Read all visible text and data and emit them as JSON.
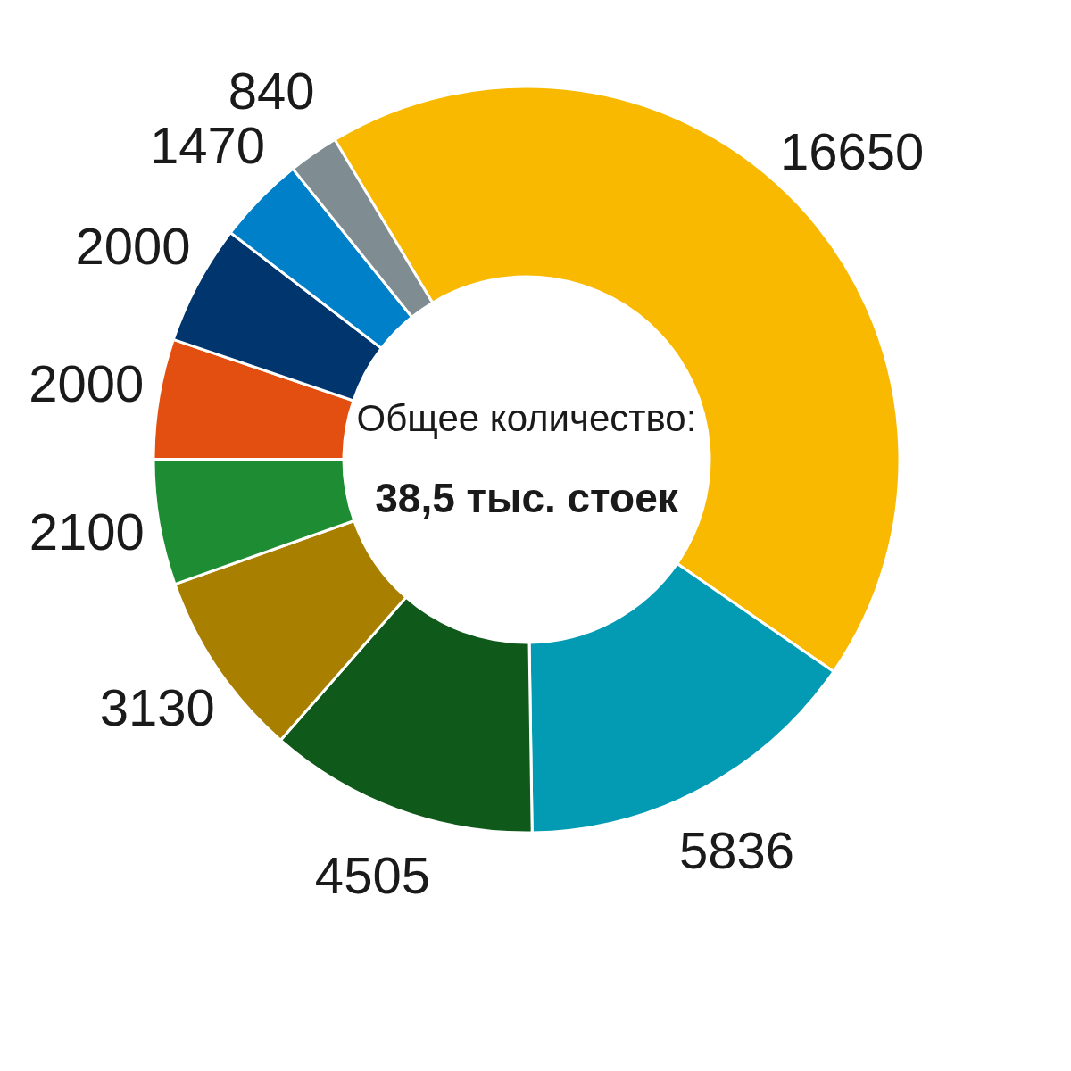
{
  "chart_data": {
    "type": "donut",
    "categories": [
      null,
      null,
      null,
      null,
      null,
      null,
      null,
      null,
      null
    ],
    "values": [
      16650,
      5836,
      4505,
      3130,
      2100,
      2000,
      2000,
      1470,
      840
    ],
    "colors": [
      "#f8b900",
      "#029bb3",
      "#0f5a1a",
      "#a97f00",
      "#1e8c32",
      "#e34f10",
      "#00356e",
      "#0080c8",
      "#7f8c92"
    ],
    "data_labels": true,
    "annotations": [
      "Общее количество:",
      "38,5 тыс. стоек"
    ]
  }
}
